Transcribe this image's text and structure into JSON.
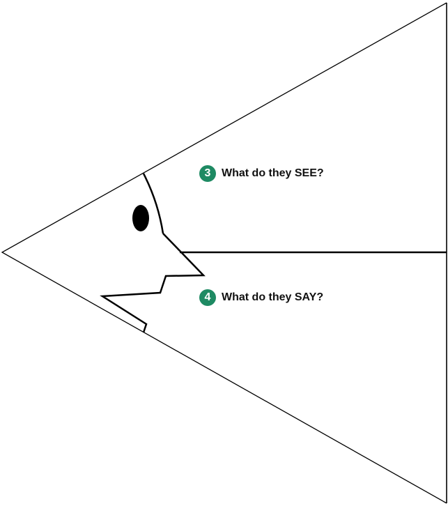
{
  "colors": {
    "badge": "#1e8a63",
    "line": "#000000",
    "eye": "#000000"
  },
  "icons": {
    "head": "head-profile-icon",
    "eye": "eye-icon"
  },
  "prompts": [
    {
      "number": "3",
      "label": "What do they SEE?"
    },
    {
      "number": "4",
      "label": "What do they SAY?"
    }
  ]
}
